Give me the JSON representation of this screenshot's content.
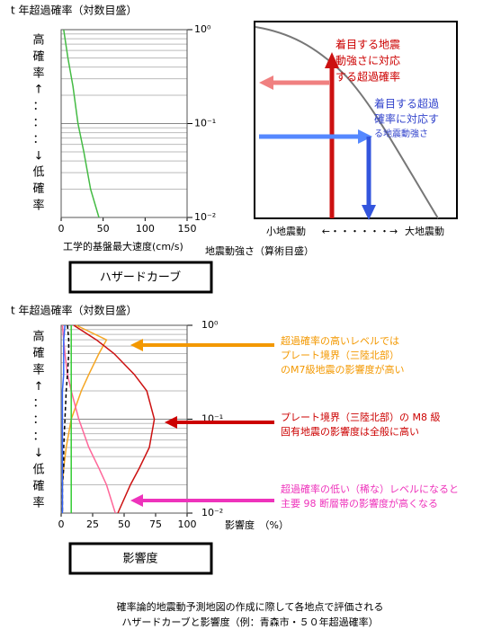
{
  "chart_data": [
    {
      "type": "line",
      "y_axis_title": "t 年超過確率（対数目盛）",
      "y_side_label": [
        "高",
        "確",
        "率",
        "↑",
        "：",
        "：",
        "：",
        "↓",
        "低",
        "確",
        "率"
      ],
      "x_axis_title": "工学的基盤最大速度(cm/s)",
      "x": [
        3,
        8,
        14,
        20,
        27,
        35,
        45
      ],
      "series": [
        {
          "color": "#44bb44",
          "values": [
            1,
            0.5,
            0.25,
            0.1,
            0.05,
            0.02,
            0.01
          ]
        }
      ],
      "xlim": [
        0,
        150
      ],
      "xticks": [
        0,
        50,
        100,
        150
      ],
      "ylim": [
        0.01,
        1
      ],
      "y_scale": "log",
      "yticks": [
        {
          "value": 1,
          "label": "10⁰"
        },
        {
          "value": 0.1,
          "label": "10⁻¹"
        },
        {
          "value": 0.01,
          "label": "10⁻²"
        }
      ],
      "minor_yticks": [
        0.02,
        0.03,
        0.04,
        0.05,
        0.06,
        0.07,
        0.08,
        0.09,
        0.2,
        0.3,
        0.4,
        0.5,
        0.6,
        0.7,
        0.8,
        0.9
      ],
      "caption": "ハザードカーブ"
    },
    {
      "type": "line",
      "orientation": "horizontal",
      "y_axis_title": "t 年超過確率（対数目盛）",
      "y_side_label": [
        "高",
        "確",
        "率",
        "↑",
        "：",
        "：",
        "：",
        "↓",
        "低",
        "確",
        "率"
      ],
      "x_axis_title": "影響度　（%）",
      "y": [
        1,
        0.7,
        0.5,
        0.3,
        0.2,
        0.1,
        0.05,
        0.03,
        0.02,
        0.01
      ],
      "series": [
        {
          "color": "#f5a623",
          "values": [
            12,
            36,
            30,
            22,
            16,
            8,
            4,
            2,
            1,
            1
          ]
        },
        {
          "color": "#cc1111",
          "values": [
            10,
            28,
            42,
            58,
            68,
            74,
            70,
            62,
            55,
            45
          ]
        },
        {
          "color": "#ff6699",
          "values": [
            1,
            2,
            3,
            5,
            8,
            14,
            22,
            30,
            36,
            43
          ]
        },
        {
          "color": "#33cc33",
          "values": [
            8,
            8,
            8,
            8,
            8,
            8,
            8,
            8,
            8,
            8
          ]
        },
        {
          "color": "#000000",
          "dashed": true,
          "values": [
            5,
            6,
            6,
            5,
            4,
            3,
            2,
            2,
            1,
            1
          ]
        },
        {
          "color": "#3366ff",
          "values": [
            3,
            2,
            2,
            2,
            1,
            1,
            1,
            1,
            1,
            1
          ]
        }
      ],
      "xlim": [
        0,
        100
      ],
      "xticks": [
        0,
        25,
        50,
        75,
        100
      ],
      "ylim": [
        0.01,
        1
      ],
      "y_scale": "log",
      "yticks": [
        {
          "value": 1,
          "label": "10⁰"
        },
        {
          "value": 0.1,
          "label": "10⁻¹"
        },
        {
          "value": 0.01,
          "label": "10⁻²"
        }
      ],
      "minor_yticks": [
        0.02,
        0.03,
        0.04,
        0.05,
        0.06,
        0.07,
        0.08,
        0.09,
        0.2,
        0.3,
        0.4,
        0.5,
        0.6,
        0.7,
        0.8,
        0.9
      ],
      "caption": "影響度"
    }
  ],
  "schematic": {
    "red_text": [
      "着目する地震",
      "動強さに対応",
      "する超過確率"
    ],
    "blue_text": [
      "着目する超過",
      "確率に対応す",
      "る地震動強さ"
    ],
    "x_left": "小地震動",
    "x_mid": "←・・・・・・→",
    "x_right": "大地震動",
    "x_axis_title": "地震動強さ（算術目盛）"
  },
  "annotations": [
    {
      "color": "#f39800",
      "lines": [
        "超過確率の高いレベルでは",
        "プレート境界（三陸北部）",
        "のM7級地震の影響度が高い"
      ]
    },
    {
      "color": "#cc0000",
      "lines": [
        "プレート境界（三陸北部）の M8 級",
        "固有地震の影響度は全般に高い"
      ]
    },
    {
      "color": "#ee33bb",
      "lines": [
        "超過確率の低い（稀な）レベルになると",
        "主要 98 断層帯の影響度が高くなる"
      ]
    }
  ],
  "footer": [
    "確率論的地震動予測地図の作成に際して各地点で評価される",
    "ハザードカーブと影響度（例：青森市・５０年超過確率）"
  ]
}
